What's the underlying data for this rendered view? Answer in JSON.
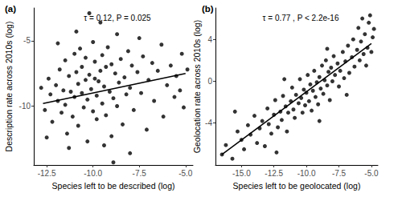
{
  "chart_data": [
    {
      "type": "scatter",
      "title": "(a)",
      "annotation": "τ = 0.12, P = 0.025",
      "x_label": "Species left to be described (log)",
      "y_label": "Description rate across 2010s (log)",
      "xlim": [
        -13.2,
        -4.6
      ],
      "ylim": [
        -14.5,
        -2.5
      ],
      "xticks": [
        {
          "value": -12.5,
          "label": "-12.5"
        },
        {
          "value": -10,
          "label": "-10.0"
        },
        {
          "value": -7.5,
          "label": "-7.5"
        },
        {
          "value": -5,
          "label": "-5.0"
        }
      ],
      "yticks": [
        -10,
        -5
      ],
      "grid": false,
      "series": [
        {
          "type": "scatter",
          "color": "#000000",
          "marker": "circle",
          "x": [
            -12.6,
            -12.4,
            -12.3,
            -12.2,
            -12.0,
            -11.9,
            -11.8,
            -11.7,
            -11.6,
            -11.5,
            -11.5,
            -11.4,
            -11.3,
            -11.2,
            -11.1,
            -11.0,
            -11.0,
            -10.9,
            -10.8,
            -10.8,
            -10.7,
            -10.6,
            -10.6,
            -10.5,
            -10.4,
            -10.4,
            -10.3,
            -10.3,
            -10.2,
            -10.2,
            -10.1,
            -10.0,
            -10.0,
            -9.9,
            -9.9,
            -9.8,
            -9.8,
            -9.7,
            -9.6,
            -9.6,
            -9.5,
            -9.5,
            -9.4,
            -9.3,
            -9.3,
            -9.2,
            -9.1,
            -9.0,
            -9.0,
            -8.9,
            -8.9,
            -8.8,
            -8.7,
            -8.7,
            -8.6,
            -8.5,
            -8.4,
            -8.3,
            -8.2,
            -8.1,
            -8.0,
            -8.0,
            -7.9,
            -7.8,
            -7.6,
            -7.5,
            -7.4,
            -7.3,
            -7.1,
            -7.0,
            -6.8,
            -6.7,
            -6.5,
            -6.3,
            -6.2,
            -6.0,
            -5.8,
            -5.6,
            -5.5,
            -5.3,
            -5.2,
            -5.1,
            -4.9,
            -12.8,
            -12.5,
            -11.9,
            -11.3,
            -10.9,
            -9.4
          ],
          "values": [
            -10.3,
            -7.9,
            -9.1,
            -11.2,
            -8.4,
            -9.6,
            -7.2,
            -10.5,
            -8.8,
            -6.5,
            -9.9,
            -12.1,
            -7.7,
            -8.9,
            -10.8,
            -6.0,
            -9.3,
            -7.4,
            -8.3,
            -11.5,
            -5.6,
            -9.0,
            -7.0,
            -10.1,
            -8.0,
            -6.3,
            -12.7,
            -9.5,
            -2.9,
            -7.6,
            -8.7,
            -5.1,
            -10.4,
            -7.9,
            -6.6,
            -9.2,
            -11.0,
            -8.1,
            -3.6,
            -7.3,
            -9.8,
            -6.1,
            -8.5,
            -10.7,
            -7.0,
            -5.5,
            -8.9,
            -12.3,
            -6.8,
            -9.4,
            -14.3,
            -7.5,
            -4.5,
            -10.0,
            -8.2,
            -6.4,
            -11.4,
            -7.8,
            -9.1,
            -5.8,
            -13.6,
            -8.6,
            -6.9,
            -10.3,
            -7.4,
            -4.8,
            -9.0,
            -6.2,
            -11.8,
            -8.0,
            -6.7,
            -9.6,
            -7.3,
            -5.3,
            -10.8,
            -8.4,
            -6.9,
            -9.3,
            -7.7,
            -8.8,
            -6.0,
            -10.1,
            -7.2,
            -8.6,
            -12.4,
            -5.2,
            -13.2,
            -4.3,
            -13.0
          ]
        },
        {
          "type": "line",
          "color": "#000000",
          "line_style": "solid",
          "x": [
            -12.7,
            -5.0
          ],
          "values": [
            -9.8,
            -7.5
          ]
        }
      ]
    },
    {
      "type": "scatter",
      "title": "(b)",
      "annotation": "τ = 0.77 , P < 2.2e-16",
      "x_label": "Species left to be geolocated (log)",
      "y_label": "Geolocation rate across 2010s (log)",
      "xlim": [
        -17,
        -4.5
      ],
      "ylim": [
        -8,
        7
      ],
      "xticks": [
        {
          "value": -15,
          "label": "-15.0"
        },
        {
          "value": -12.5,
          "label": "-12.5"
        },
        {
          "value": -10,
          "label": "-10.0"
        },
        {
          "value": -7.5,
          "label": "-7.5"
        },
        {
          "value": -5,
          "label": "-5.0"
        }
      ],
      "yticks": [
        -4,
        0,
        4
      ],
      "grid": false,
      "series": [
        {
          "type": "scatter",
          "color": "#000000",
          "marker": "circle",
          "x": [
            -16.5,
            -16.2,
            -15.7,
            -15.3,
            -15.0,
            -14.8,
            -14.5,
            -14.3,
            -14.0,
            -13.8,
            -13.6,
            -13.4,
            -13.2,
            -13.0,
            -12.9,
            -12.7,
            -12.5,
            -12.4,
            -12.2,
            -12.0,
            -11.9,
            -11.8,
            -11.6,
            -11.5,
            -11.4,
            -11.2,
            -11.1,
            -11.0,
            -10.9,
            -10.8,
            -10.6,
            -10.5,
            -10.4,
            -10.3,
            -10.2,
            -10.1,
            -10.0,
            -9.9,
            -9.8,
            -9.7,
            -9.6,
            -9.5,
            -9.4,
            -9.3,
            -9.2,
            -9.1,
            -9.0,
            -8.9,
            -8.8,
            -8.7,
            -8.6,
            -8.5,
            -8.4,
            -8.3,
            -8.2,
            -8.1,
            -8.0,
            -7.9,
            -7.8,
            -7.6,
            -7.5,
            -7.4,
            -7.2,
            -7.1,
            -7.0,
            -6.8,
            -6.7,
            -6.5,
            -6.4,
            -6.3,
            -6.1,
            -6.0,
            -5.9,
            -5.8,
            -5.7,
            -5.6,
            -5.5,
            -5.4,
            -5.3,
            -5.2,
            -5.1,
            -5.0,
            -4.9,
            -4.8,
            -12.3,
            -11.7,
            -9.0,
            -8.4,
            -6.9,
            -15.5
          ],
          "values": [
            -7.0,
            -6.1,
            -7.4,
            -4.8,
            -5.6,
            -6.5,
            -4.2,
            -5.1,
            -3.3,
            -5.9,
            -4.5,
            -3.8,
            -6.2,
            -2.6,
            -4.1,
            -5.0,
            -3.2,
            -1.8,
            -4.4,
            -2.9,
            -3.7,
            -1.4,
            -2.4,
            -4.8,
            -3.0,
            -1.9,
            -0.6,
            -2.7,
            -3.5,
            -1.3,
            -2.1,
            0.2,
            -1.6,
            -3.0,
            -0.8,
            -2.3,
            -1.1,
            0.6,
            -1.9,
            -0.3,
            -2.8,
            -0.9,
            1.0,
            -1.5,
            -0.1,
            -2.2,
            0.4,
            -0.7,
            1.5,
            -1.2,
            0.1,
            2.0,
            -0.4,
            0.9,
            -1.8,
            1.3,
            0.0,
            2.4,
            0.6,
            1.7,
            -0.5,
            1.0,
            2.8,
            0.3,
            1.9,
            3.4,
            0.8,
            2.3,
            4.0,
            1.4,
            3.0,
            5.1,
            2.0,
            3.8,
            6.0,
            2.6,
            4.5,
            1.5,
            3.2,
            5.6,
            6.3,
            2.8,
            4.2,
            5.0,
            -6.8,
            0.2,
            -3.8,
            3.1,
            -1.3,
            -2.9
          ]
        },
        {
          "type": "line",
          "color": "#000000",
          "line_style": "solid",
          "x": [
            -16.5,
            -5.0
          ],
          "values": [
            -7.0,
            3.6
          ]
        }
      ]
    }
  ]
}
